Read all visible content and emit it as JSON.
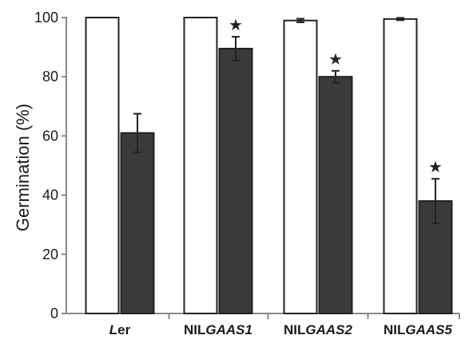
{
  "chart_data": {
    "type": "bar",
    "ylabel": "Germination (%)",
    "ylim": [
      0,
      100
    ],
    "yticks": [
      0,
      20,
      40,
      60,
      80,
      100
    ],
    "grid": false,
    "categories": [
      {
        "prefix": "",
        "italic": "L",
        "rest": "er"
      },
      {
        "prefix": "NIL",
        "italic": "GAAS1",
        "rest": ""
      },
      {
        "prefix": "NIL",
        "italic": "GAAS2",
        "rest": ""
      },
      {
        "prefix": "NIL",
        "italic": "GAAS5",
        "rest": ""
      }
    ],
    "series": [
      {
        "fill": "#ffffff",
        "values": [
          100,
          100,
          99,
          99.5
        ],
        "errors": [
          0,
          0,
          0.6,
          0.4
        ]
      },
      {
        "fill": "#3a3a3a",
        "values": [
          61,
          89.5,
          80,
          38
        ],
        "errors": [
          6.5,
          4,
          2,
          7.5
        ]
      }
    ],
    "significance": {
      "symbol": "★",
      "marked": [
        false,
        true,
        true,
        true
      ]
    }
  }
}
